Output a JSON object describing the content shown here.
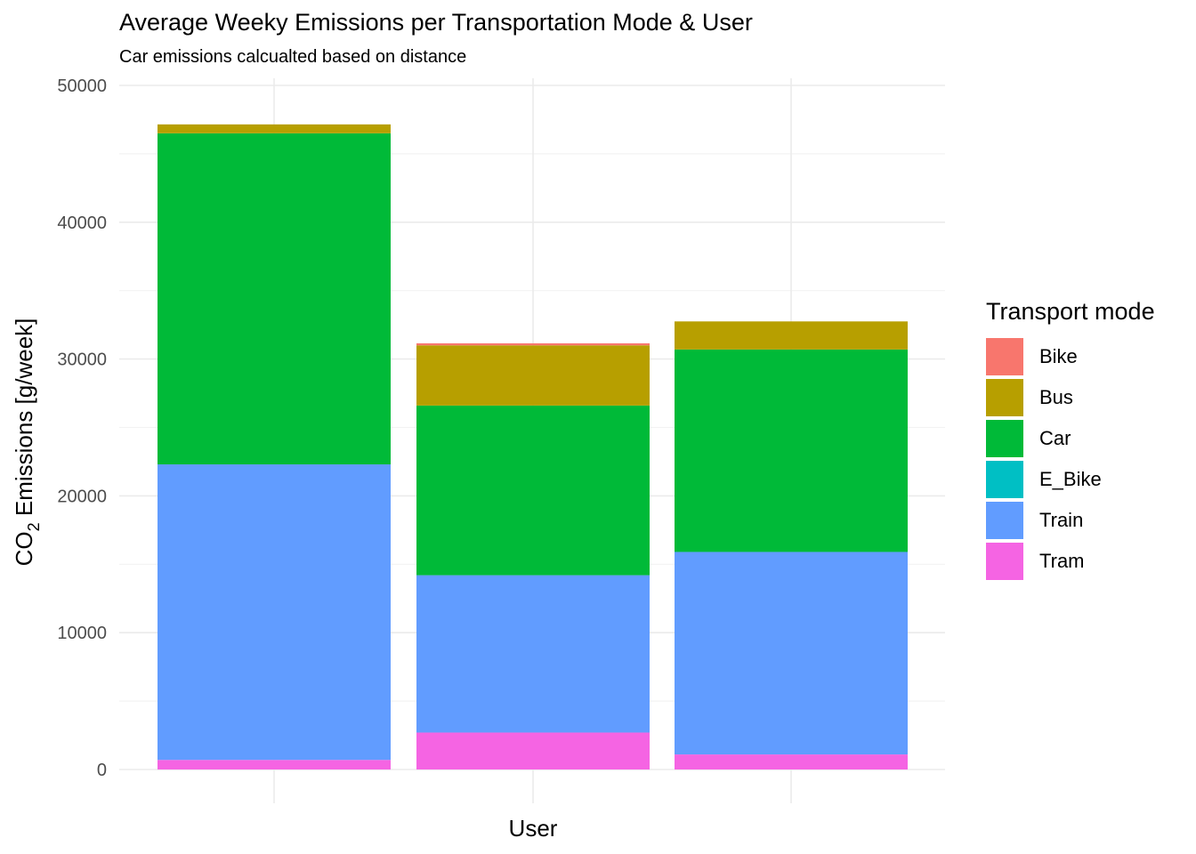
{
  "chart_data": {
    "type": "bar",
    "stacked": true,
    "title": "Average Weeky Emissions per Transportation Mode & User",
    "subtitle": "Car emissions calcualted based on distance",
    "xlabel": "User",
    "ylabel_main": "CO",
    "ylabel_sub": "2",
    "ylabel_rest": " Emissions [g/week]",
    "ylim": [
      0,
      50000
    ],
    "yticks": [
      "0",
      "10000",
      "20000",
      "30000",
      "40000",
      "50000"
    ],
    "grid": true,
    "legend_position": "right",
    "legend_title": "Transport mode",
    "categories": [
      "",
      "",
      ""
    ],
    "series": [
      {
        "name": "Tram",
        "color": "#F564E3",
        "values": [
          700,
          2700,
          1100
        ]
      },
      {
        "name": "Train",
        "color": "#619CFF",
        "values": [
          21600,
          11500,
          14800
        ]
      },
      {
        "name": "Car",
        "color": "#00BA38",
        "values": [
          24200,
          12400,
          14800
        ]
      },
      {
        "name": "E_Bike",
        "color": "#00BFC4",
        "values": [
          0,
          0,
          0
        ]
      },
      {
        "name": "Bus",
        "color": "#B79F00",
        "values": [
          650,
          4400,
          2050
        ]
      },
      {
        "name": "Bike",
        "color": "#F8766D",
        "values": [
          0,
          150,
          0
        ]
      }
    ],
    "legend_order": [
      "Bike",
      "Bus",
      "Car",
      "E_Bike",
      "Train",
      "Tram"
    ]
  }
}
